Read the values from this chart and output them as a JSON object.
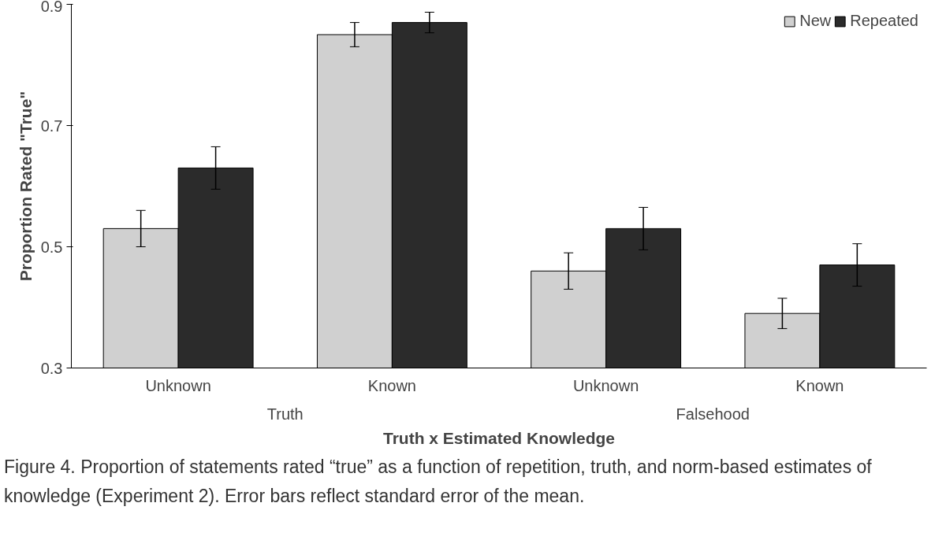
{
  "chart_data": {
    "type": "bar",
    "ylabel": "Proportion Rated \"True\"",
    "xlabel": "Truth x Estimated Knowledge",
    "categories": [
      "Unknown",
      "Known",
      "Unknown",
      "Known"
    ],
    "series": [
      {
        "name": "New",
        "color": "#d0d0d0",
        "values": [
          0.53,
          0.85,
          0.46,
          0.39
        ],
        "errors": [
          0.03,
          0.02,
          0.03,
          0.025
        ]
      },
      {
        "name": "Repeated",
        "color": "#2b2b2b",
        "values": [
          0.63,
          0.87,
          0.53,
          0.47
        ],
        "errors": [
          0.035,
          0.017,
          0.035,
          0.035
        ]
      }
    ],
    "ylim": [
      0.3,
      0.9
    ],
    "yticks": [
      0.3,
      0.5,
      0.7,
      0.9
    ],
    "legend": "top right",
    "grid": false,
    "annotations": [
      "Truth",
      "Falsehood",
      "Figure 4. Proportion of statements rated “true” as a function of repetition, truth, and norm-based estimates of knowledge (Experiment 2). Error bars reflect standard error of the mean."
    ]
  }
}
